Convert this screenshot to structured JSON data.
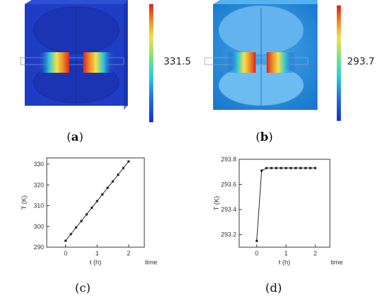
{
  "panels": {
    "a": {
      "label": "a",
      "colorbar_value": "331.5"
    },
    "b": {
      "label": "b",
      "colorbar_value": "293.7"
    },
    "c": {
      "label": "c"
    },
    "d": {
      "label": "d"
    }
  },
  "colors": {
    "background_blue_a": "#1f3fc8",
    "background_blue_b": "#1a86d8",
    "hot_red": "#e8361a",
    "hot_yellow": "#f2e24a"
  },
  "chart_data": [
    {
      "type": "line",
      "panel": "c",
      "title": "",
      "xlabel": "t (h)",
      "x_unit_label": "time",
      "ylabel": "T (K)",
      "xlim": [
        -0.6,
        2.5
      ],
      "ylim": [
        290,
        333
      ],
      "xticks": [
        0,
        1,
        2
      ],
      "yticks": [
        290,
        300,
        310,
        320,
        330
      ],
      "grid": false,
      "x": [
        0,
        0.167,
        0.333,
        0.5,
        0.667,
        0.833,
        1.0,
        1.167,
        1.333,
        1.5,
        1.667,
        1.833,
        2.0
      ],
      "y": [
        293.1,
        296.3,
        299.5,
        302.6,
        305.8,
        309.0,
        312.2,
        315.4,
        318.6,
        321.7,
        324.9,
        328.1,
        331.3
      ]
    },
    {
      "type": "line",
      "panel": "d",
      "title": "",
      "xlabel": "t (h)",
      "x_unit_label": "time",
      "ylabel": "T (K)",
      "xlim": [
        -0.6,
        2.5
      ],
      "ylim": [
        293.1,
        293.8
      ],
      "xticks": [
        0,
        1,
        2
      ],
      "yticks": [
        293.2,
        293.4,
        293.6,
        293.8
      ],
      "grid": false,
      "x": [
        0,
        0.167,
        0.333,
        0.5,
        0.667,
        0.833,
        1.0,
        1.167,
        1.333,
        1.5,
        1.667,
        1.833,
        2.0
      ],
      "y": [
        293.15,
        293.71,
        293.73,
        293.73,
        293.73,
        293.73,
        293.73,
        293.73,
        293.73,
        293.73,
        293.73,
        293.73,
        293.73
      ]
    }
  ]
}
